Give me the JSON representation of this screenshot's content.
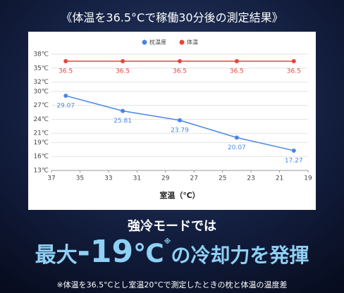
{
  "header": {
    "title": "《体温を36.5°Cで稼働30分後の測定結果》"
  },
  "chart_data": {
    "type": "line",
    "x": [
      36,
      32,
      28,
      24,
      20
    ],
    "series": [
      {
        "name": "枕温度",
        "color": "#4a86e8",
        "values": [
          29.07,
          25.81,
          23.79,
          20.07,
          17.27
        ]
      },
      {
        "name": "体温",
        "color": "#e8443a",
        "values": [
          36.5,
          36.5,
          36.5,
          36.5,
          36.5
        ]
      }
    ],
    "xlabel": "室温（℃）",
    "xlim": [
      37,
      19
    ],
    "xticks": [
      37,
      35,
      33,
      31,
      29,
      27,
      25,
      23,
      21,
      19
    ],
    "ylim": [
      13,
      38
    ],
    "yticks": [
      {
        "value": 13,
        "label": "13℃"
      },
      {
        "value": 16,
        "label": "16℃"
      },
      {
        "value": 19,
        "label": "19℃"
      },
      {
        "value": 21,
        "label": "21℃"
      },
      {
        "value": 24,
        "label": "24℃"
      },
      {
        "value": 27,
        "label": "27℃"
      },
      {
        "value": 30,
        "label": "30℃"
      },
      {
        "value": 32,
        "label": "32℃"
      },
      {
        "value": 35,
        "label": "35℃"
      },
      {
        "value": 38,
        "label": "38℃"
      }
    ],
    "grid": true,
    "legend": "top"
  },
  "promo": {
    "lead": "強冷モードでは",
    "max": "最大",
    "number": "-19",
    "unit": "℃",
    "mark": "※",
    "rest": "の冷却力を発揮",
    "footnote": "※体温を36.5°Cとし室温20°Cで測定したときの枕と体温の温度差"
  }
}
